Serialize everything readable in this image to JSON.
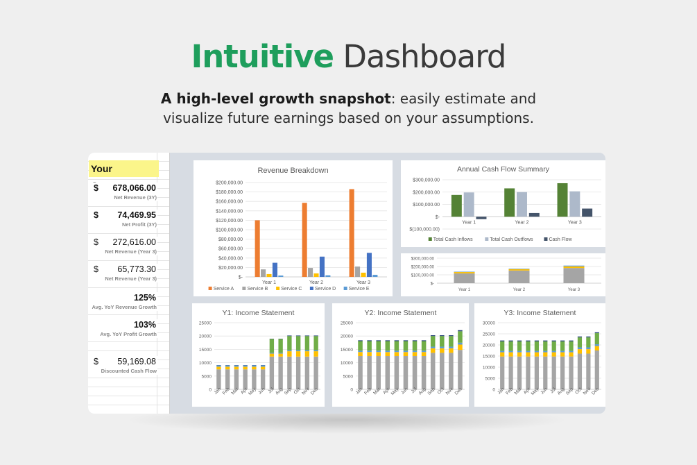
{
  "hero": {
    "title_accent": "Intuitive",
    "title_rest": "Dashboard",
    "subtitle_bold": "A high-level growth snapshot",
    "subtitle_line1_rest": ": easily estimate and",
    "subtitle_line2": "visualize future earnings based on your assumptions."
  },
  "sheet": {
    "company": "Your Company",
    "kpis": [
      {
        "currency": "$",
        "value": "678,066.00",
        "label": "Net Revenue (3Y)",
        "bold": true
      },
      {
        "currency": "$",
        "value": "74,469.95",
        "label": "Net Profit (3Y)",
        "bold": true
      },
      {
        "currency": "$",
        "value": "272,616.00",
        "label": "Net Revenue (Year 3)",
        "bold": false
      },
      {
        "currency": "$",
        "value": "65,773.30",
        "label": "Net Revenue (Year 3)",
        "bold": false
      },
      {
        "currency": "",
        "value": "125%",
        "label": "Avg. YoY Revenue Growth",
        "bold": true
      },
      {
        "currency": "",
        "value": "103%",
        "label": "Avg. YoY Profit Growth",
        "bold": true
      },
      {
        "currency": "$",
        "value": "59,169.08",
        "label": "Discounted Cash Flow",
        "bold": false
      }
    ]
  },
  "colors": {
    "accent": "#1e9e5c",
    "orange": "#ed7d31",
    "gray": "#a5a5a5",
    "yellow": "#ffc000",
    "blue": "#4472c4",
    "lightblue": "#5b9bd5",
    "green": "#70ad47",
    "darkgreen": "#548235",
    "slate": "#adb9ca",
    "navy": "#44546a"
  },
  "chart_data": [
    {
      "type": "bar",
      "title": "Revenue Breakdown",
      "stacked": false,
      "categories": [
        "Year 1",
        "Year 2",
        "Year 3"
      ],
      "series": [
        {
          "name": "Service A",
          "color": "#ed7d31",
          "values": [
            120000,
            157000,
            186000
          ]
        },
        {
          "name": "Service B",
          "color": "#a5a5a5",
          "values": [
            16000,
            19000,
            22000
          ]
        },
        {
          "name": "Service C",
          "color": "#ffc000",
          "values": [
            6000,
            7500,
            9000
          ]
        },
        {
          "name": "Service D",
          "color": "#4472c4",
          "values": [
            30000,
            43000,
            51000
          ]
        },
        {
          "name": "Service E",
          "color": "#5b9bd5",
          "values": [
            3000,
            3500,
            4500
          ]
        }
      ],
      "ylim": [
        0,
        200000
      ],
      "yticks": [
        0,
        20000,
        40000,
        60000,
        80000,
        100000,
        120000,
        140000,
        160000,
        180000,
        200000
      ],
      "ytick_labels": [
        "$-",
        "$20,000.00",
        "$40,000.00",
        "$60,000.00",
        "$80,000.00",
        "$100,000.00",
        "$120,000.00",
        "$140,000.00",
        "$160,000.00",
        "$180,000.00",
        "$200,000.00"
      ],
      "legend": "bottom",
      "grid": true
    },
    {
      "type": "bar",
      "title": "Annual Cash Flow Summary",
      "stacked": false,
      "categories": [
        "Year 1",
        "Year 2",
        "Year 3"
      ],
      "series": [
        {
          "name": "Total Cash Inflows",
          "color": "#548235",
          "values": [
            177000,
            230000,
            272000
          ]
        },
        {
          "name": "Total Cash Outflows",
          "color": "#adb9ca",
          "values": [
            197000,
            200000,
            206000
          ]
        },
        {
          "name": "Cash Flow",
          "color": "#44546a",
          "values": [
            -20000,
            30000,
            66000
          ]
        }
      ],
      "ylim": [
        -100000,
        300000
      ],
      "yticks": [
        -100000,
        0,
        100000,
        200000,
        300000
      ],
      "ytick_labels": [
        "$(100,000.00)",
        "$-",
        "$100,000.00",
        "$200,000.00",
        "$300,000.00"
      ],
      "legend": "bottom",
      "grid": true
    },
    {
      "type": "bar",
      "title": "",
      "stacked": true,
      "categories": [
        "Year 1",
        "Year 2",
        "Year 3"
      ],
      "series": [
        {
          "name": "Base",
          "color": "#a5a5a5",
          "values": [
            118000,
            152000,
            182000
          ]
        },
        {
          "name": "Segment 2",
          "color": "#ffc000",
          "values": [
            15000,
            17000,
            20000
          ]
        },
        {
          "name": "Segment 3",
          "color": "#5b9bd5",
          "values": [
            5000,
            6000,
            9000
          ]
        }
      ],
      "ylim": [
        0,
        300000
      ],
      "yticks": [
        0,
        100000,
        200000,
        300000
      ],
      "ytick_labels": [
        "$-",
        "$100,000.00",
        "$200,000.00",
        "$300,000.00"
      ],
      "legend": "none",
      "grid": true
    },
    {
      "type": "bar",
      "title": "Y1: Income Statement",
      "stacked": true,
      "categories": [
        "Jan",
        "Feb",
        "Mar",
        "Apr",
        "May",
        "Jun",
        "Jul",
        "Aug",
        "Sep",
        "Oct",
        "Nov",
        "Dec"
      ],
      "series": [
        {
          "name": "Segment 1",
          "color": "#a5a5a5",
          "values": [
            7500,
            7500,
            7500,
            7500,
            7500,
            7500,
            12300,
            12300,
            12300,
            12300,
            12300,
            12300
          ]
        },
        {
          "name": "Segment 2",
          "color": "#ffc000",
          "values": [
            1000,
            1000,
            1000,
            1000,
            1000,
            1000,
            1100,
            1100,
            2000,
            2000,
            2000,
            2000
          ]
        },
        {
          "name": "Segment 3",
          "color": "#5b9bd5",
          "values": [
            500,
            500,
            500,
            500,
            500,
            500,
            300,
            300,
            400,
            400,
            400,
            400
          ]
        },
        {
          "name": "Segment 4",
          "color": "#70ad47",
          "values": [
            0,
            0,
            0,
            0,
            0,
            0,
            5200,
            5200,
            5300,
            5300,
            5300,
            5300
          ]
        },
        {
          "name": "Segment 5",
          "color": "#264478",
          "values": [
            100,
            100,
            100,
            100,
            100,
            100,
            100,
            100,
            200,
            200,
            200,
            200
          ]
        }
      ],
      "ylim": [
        0,
        25000
      ],
      "yticks": [
        0,
        5000,
        10000,
        15000,
        20000,
        25000
      ],
      "ytick_labels": [
        "0",
        "5000",
        "10000",
        "15000",
        "20000",
        "25000"
      ],
      "legend": "none",
      "grid": true
    },
    {
      "type": "bar",
      "title": "Y2: Income Statement",
      "stacked": true,
      "categories": [
        "Jan",
        "Feb",
        "Mar",
        "Apr",
        "May",
        "Jun",
        "Jul",
        "Aug",
        "Sep",
        "Oct",
        "Nov",
        "Dec"
      ],
      "series": [
        {
          "name": "Segment 1",
          "color": "#a5a5a5",
          "values": [
            12500,
            12500,
            12500,
            12500,
            12500,
            12500,
            12500,
            12500,
            13700,
            13700,
            13700,
            14800
          ]
        },
        {
          "name": "Segment 2",
          "color": "#ffc000",
          "values": [
            1500,
            1500,
            1500,
            1500,
            1500,
            1500,
            1500,
            1500,
            1700,
            1700,
            1700,
            2000
          ]
        },
        {
          "name": "Segment 3",
          "color": "#5b9bd5",
          "values": [
            500,
            500,
            500,
            500,
            500,
            500,
            500,
            500,
            600,
            600,
            600,
            700
          ]
        },
        {
          "name": "Segment 4",
          "color": "#70ad47",
          "values": [
            3600,
            3600,
            3600,
            3600,
            3600,
            3600,
            3600,
            3600,
            4000,
            4000,
            4000,
            4300
          ]
        },
        {
          "name": "Segment 5",
          "color": "#264478",
          "values": [
            300,
            300,
            300,
            300,
            300,
            300,
            300,
            300,
            300,
            300,
            300,
            400
          ]
        }
      ],
      "ylim": [
        0,
        25000
      ],
      "yticks": [
        0,
        5000,
        10000,
        15000,
        20000,
        25000
      ],
      "ytick_labels": [
        "0",
        "5000",
        "10000",
        "15000",
        "20000",
        "25000"
      ],
      "legend": "none",
      "grid": true
    },
    {
      "type": "bar",
      "title": "Y3: Income Statement",
      "stacked": true,
      "categories": [
        "Jan",
        "Feb",
        "Mar",
        "Apr",
        "May",
        "Jun",
        "Jul",
        "Aug",
        "Sep",
        "Oct",
        "Nov",
        "Dec"
      ],
      "series": [
        {
          "name": "Segment 1",
          "color": "#a5a5a5",
          "values": [
            14800,
            14800,
            14800,
            14800,
            14800,
            14800,
            14800,
            14800,
            14800,
            16100,
            16100,
            17500
          ]
        },
        {
          "name": "Segment 2",
          "color": "#ffc000",
          "values": [
            1900,
            1900,
            1900,
            1900,
            1900,
            1900,
            1900,
            1900,
            1900,
            2000,
            2000,
            2000
          ]
        },
        {
          "name": "Segment 3",
          "color": "#5b9bd5",
          "values": [
            600,
            600,
            600,
            600,
            600,
            600,
            600,
            600,
            600,
            800,
            800,
            800
          ]
        },
        {
          "name": "Segment 4",
          "color": "#70ad47",
          "values": [
            4300,
            4300,
            4300,
            4300,
            4300,
            4300,
            4300,
            4300,
            4300,
            4500,
            4500,
            5000
          ]
        },
        {
          "name": "Segment 5",
          "color": "#264478",
          "values": [
            400,
            400,
            400,
            400,
            400,
            400,
            400,
            400,
            400,
            400,
            400,
            400
          ]
        }
      ],
      "ylim": [
        0,
        30000
      ],
      "yticks": [
        0,
        5000,
        10000,
        15000,
        20000,
        25000,
        30000
      ],
      "ytick_labels": [
        "0",
        "5000",
        "10000",
        "15000",
        "20000",
        "25000",
        "30000"
      ],
      "legend": "none",
      "grid": true
    }
  ]
}
